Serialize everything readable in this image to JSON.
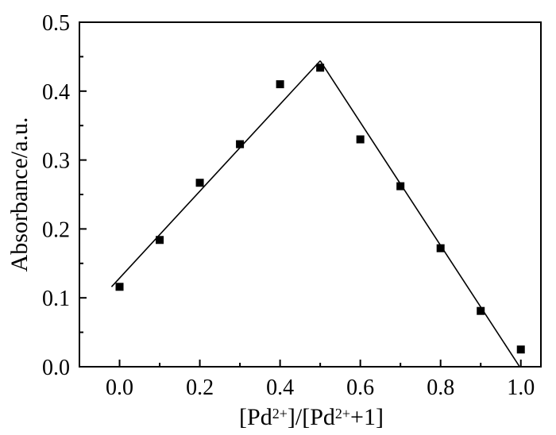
{
  "chart_data": {
    "type": "scatter",
    "title": "",
    "xlabel": {
      "parts": [
        {
          "text": "[Pd",
          "sup": false
        },
        {
          "text": "2+",
          "sup": true
        },
        {
          "text": "]/[Pd",
          "sup": false
        },
        {
          "text": "2+",
          "sup": true
        },
        {
          "text": "+1]",
          "sup": false
        }
      ]
    },
    "ylabel": "Absorbance/a.u.",
    "xlim": [
      -0.1,
      1.05
    ],
    "ylim": [
      0.0,
      0.5
    ],
    "xticks": [
      "0.0",
      "0.2",
      "0.4",
      "0.6",
      "0.8",
      "1.0"
    ],
    "xtick_values": [
      0.0,
      0.2,
      0.4,
      0.6,
      0.8,
      1.0
    ],
    "xminor_values": [
      0.1,
      0.3,
      0.5,
      0.7,
      0.9
    ],
    "yticks": [
      "0.0",
      "0.1",
      "0.2",
      "0.3",
      "0.4",
      "0.5"
    ],
    "ytick_values": [
      0.0,
      0.1,
      0.2,
      0.3,
      0.4,
      0.5
    ],
    "grid": false,
    "legend": "none",
    "series": [
      {
        "marker": "square",
        "color": "#000000",
        "points": [
          {
            "x": 0.0,
            "y": 0.116
          },
          {
            "x": 0.1,
            "y": 0.184
          },
          {
            "x": 0.2,
            "y": 0.267
          },
          {
            "x": 0.3,
            "y": 0.323
          },
          {
            "x": 0.4,
            "y": 0.41
          },
          {
            "x": 0.5,
            "y": 0.434
          },
          {
            "x": 0.6,
            "y": 0.33
          },
          {
            "x": 0.7,
            "y": 0.262
          },
          {
            "x": 0.8,
            "y": 0.172
          },
          {
            "x": 0.9,
            "y": 0.081
          },
          {
            "x": 1.0,
            "y": 0.025
          }
        ]
      }
    ],
    "fit_lines": [
      {
        "color": "#000000",
        "points": [
          {
            "x": -0.02,
            "y": 0.116
          },
          {
            "x": 0.5,
            "y": 0.444
          }
        ]
      },
      {
        "color": "#000000",
        "points": [
          {
            "x": 0.5,
            "y": 0.444
          },
          {
            "x": 0.997,
            "y": 0.0
          }
        ]
      }
    ]
  }
}
